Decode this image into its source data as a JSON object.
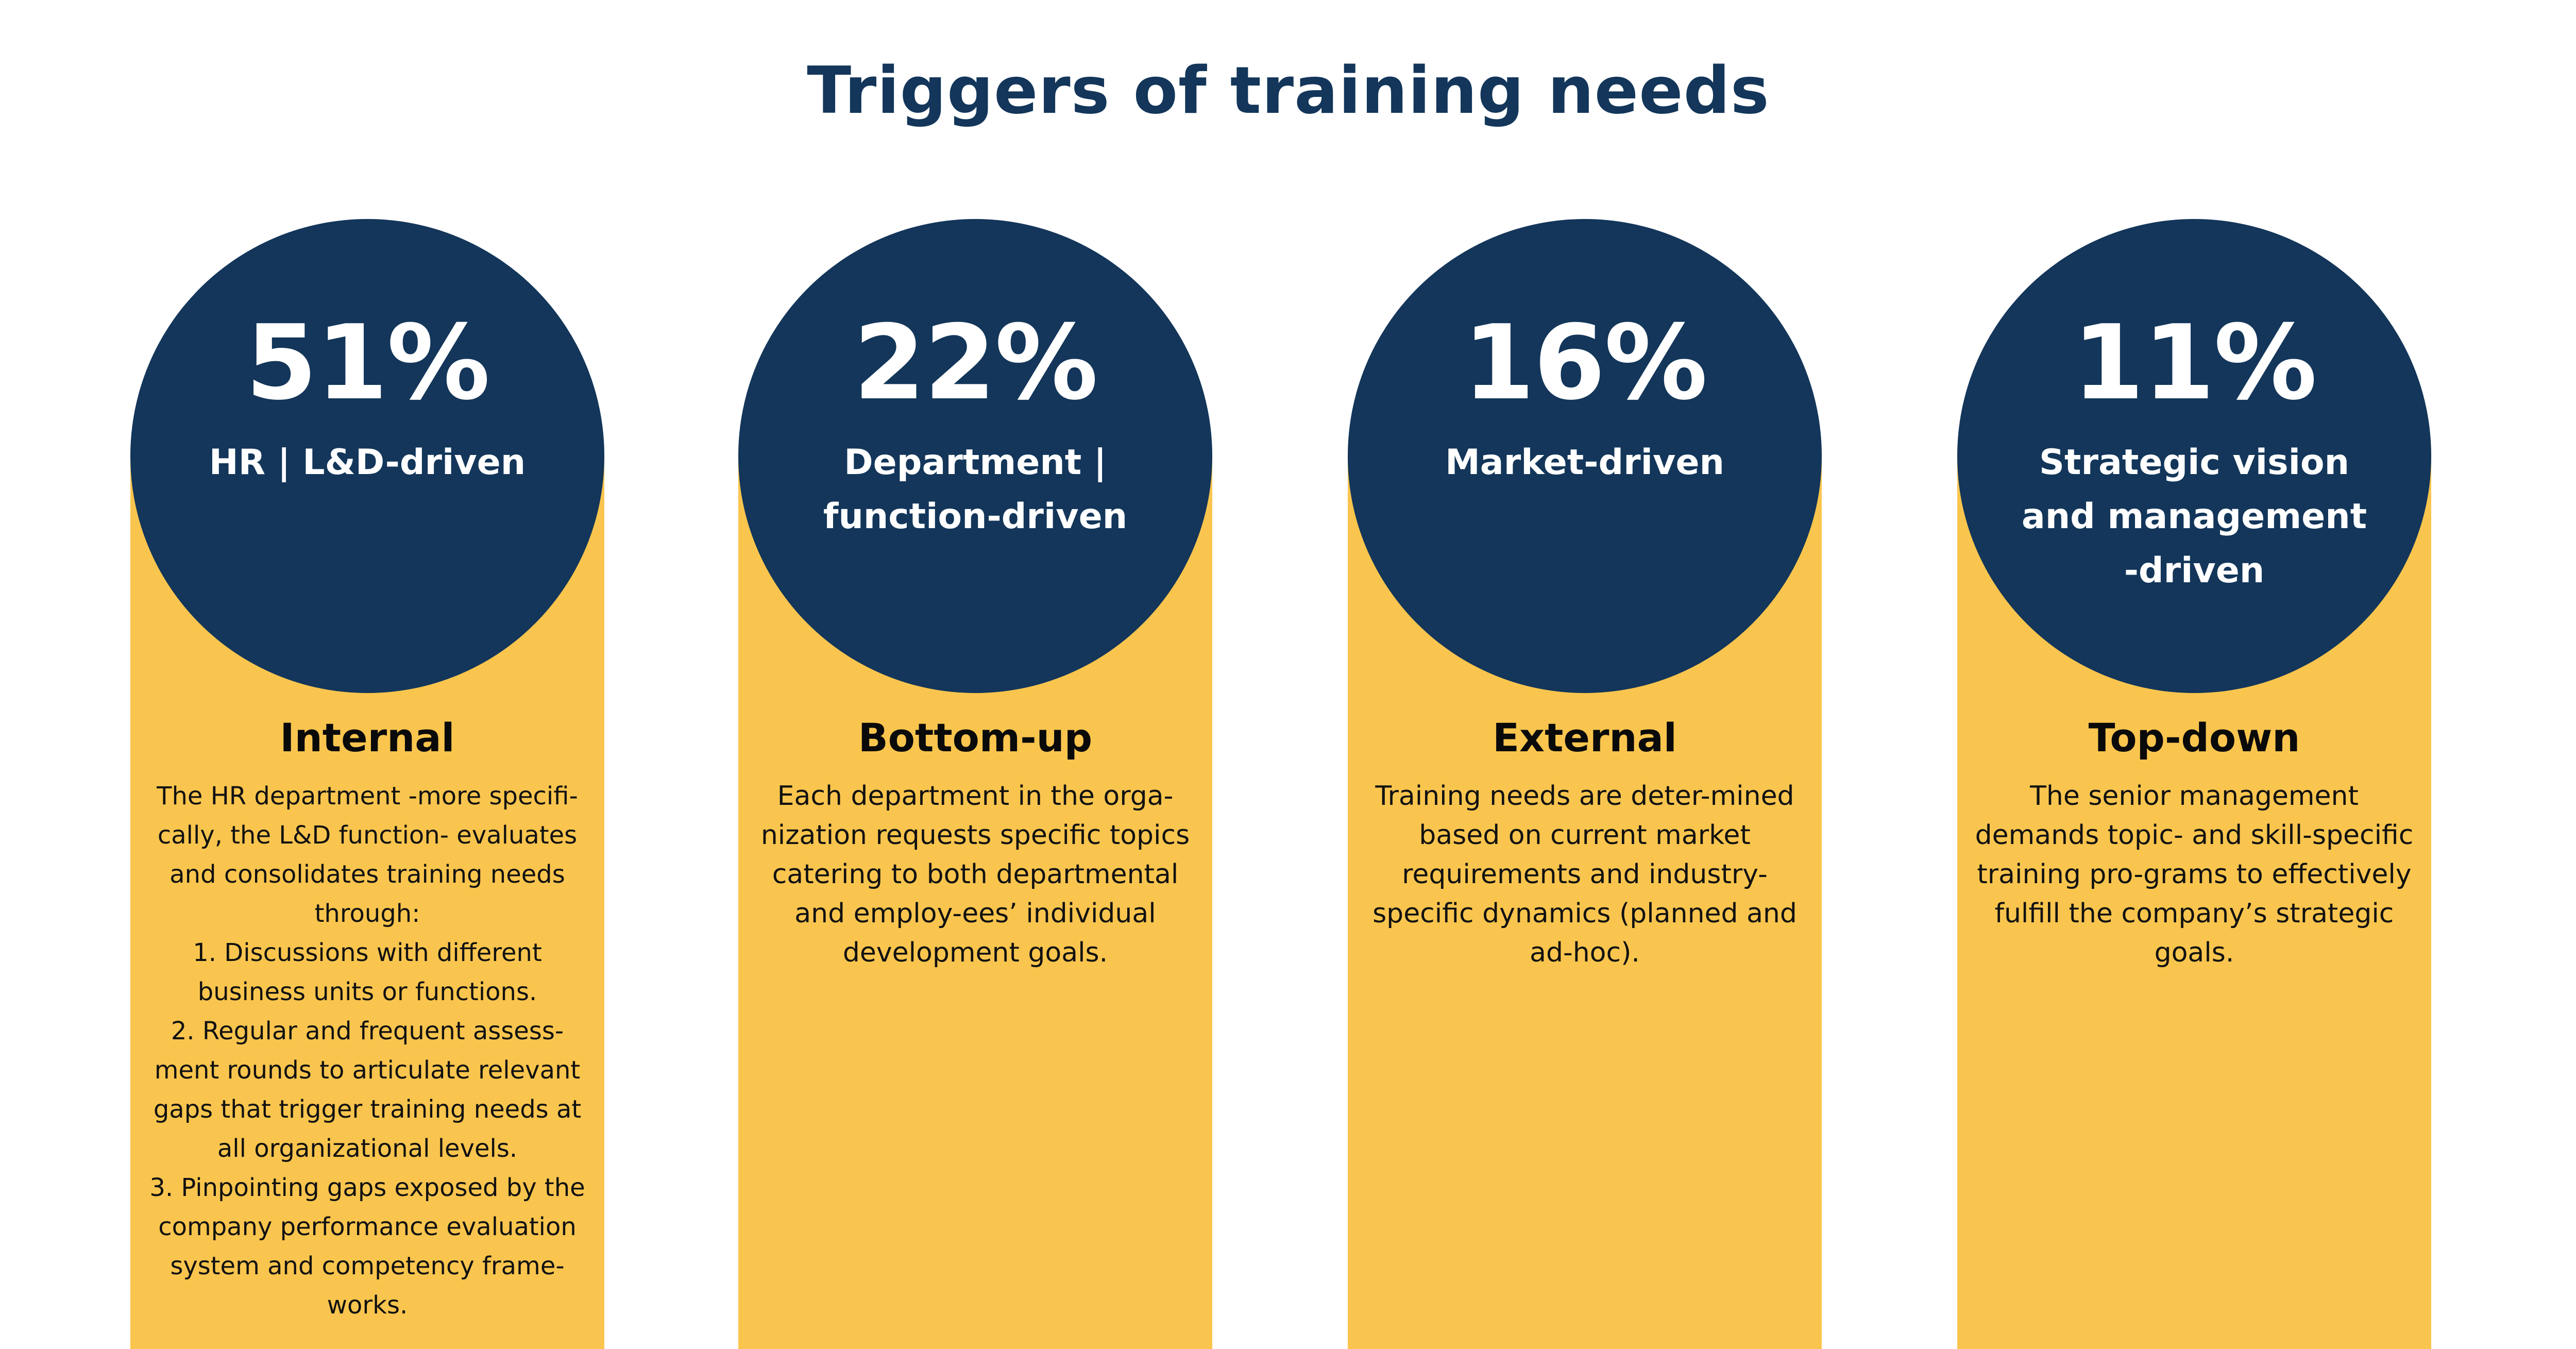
{
  "title": "Triggers of training needs",
  "colors": {
    "circle": "#13365a",
    "card": "#f9c54e",
    "title": "#13365a",
    "text": "#111111"
  },
  "chart_data": {
    "type": "bar",
    "title": "Triggers of training needs",
    "categories": [
      "HR | L&D-driven",
      "Department | function-driven",
      "Market-driven",
      "Strategic vision and management -driven"
    ],
    "values": [
      51,
      22,
      16,
      11
    ],
    "value_labels": [
      "51%",
      "22%",
      "16%",
      "11%"
    ],
    "headings": [
      "Internal",
      "Bottom-up",
      "External",
      "Top-down"
    ]
  },
  "cards": [
    {
      "percent": "51%",
      "driver": "HR | L&D-driven",
      "heading": "Internal",
      "description": "The HR department -more specifi-cally, the L&D function- evaluates and consolidates training needs through:\n1. Discussions with different business units or functions.\n2. Regular and frequent assess-ment rounds to articulate relevant gaps that trigger training needs at all organizational levels.\n3. Pinpointing gaps exposed by the company performance evaluation system and competency frame-works."
    },
    {
      "percent": "22%",
      "driver": "Department | function-driven",
      "heading": "Bottom-up",
      "description": "Each department in the orga-nization requests specific topics catering to both departmental and employ-ees’ individual development goals."
    },
    {
      "percent": "16%",
      "driver": "Market-driven",
      "heading": "External",
      "description": "Training needs are deter-mined based on current market requirements and industry-specific dynamics (planned and ad-hoc)."
    },
    {
      "percent": "11%",
      "driver": "Strategic vision and management -driven",
      "heading": "Top-down",
      "description": "The senior management demands topic- and skill-specific training pro-grams to effectively fulfill the company’s strategic goals."
    }
  ]
}
